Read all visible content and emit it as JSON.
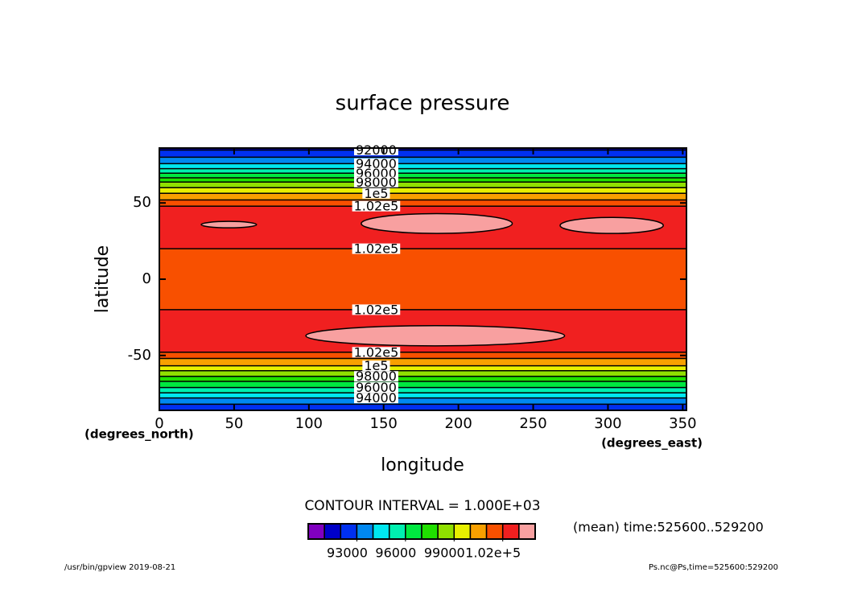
{
  "chart_data": {
    "type": "contour",
    "title": "surface pressure",
    "x_label": "longitude",
    "y_label": "latitude",
    "x_units": "(degrees_east)",
    "y_units": "(degrees_north)",
    "xlim": [
      0,
      352.5
    ],
    "ylim": [
      -86,
      86
    ],
    "xticks": [
      0,
      50,
      100,
      150,
      200,
      250,
      300,
      350
    ],
    "yticks": [
      -50,
      0,
      50
    ],
    "profile": {
      "lat": [
        86,
        84.7,
        80,
        75.8,
        72.5,
        69.5,
        66.5,
        63.7,
        60,
        56.3,
        52,
        47.9,
        35,
        20,
        0,
        -20,
        -35,
        -47.9,
        -52,
        -56.8,
        -60,
        -63.7,
        -67,
        -71,
        -74.5,
        -77.9,
        -82,
        -86
      ],
      "values": [
        91800,
        92000,
        93000,
        94000,
        95000,
        96000,
        97000,
        98000,
        99000,
        100000,
        101000,
        102000,
        102800,
        102000,
        101600,
        102000,
        102800,
        102000,
        101000,
        100000,
        99000,
        98000,
        97000,
        96000,
        95000,
        94000,
        93000,
        92200
      ]
    },
    "closed_contours": {
      "value": 103000,
      "regions": [
        {
          "lon": [
            28,
            65
          ],
          "lat": [
            33.7,
            37.9
          ]
        },
        {
          "lon": [
            135,
            236
          ],
          "lat": [
            30,
            43
          ]
        },
        {
          "lon": [
            268,
            337
          ],
          "lat": [
            30,
            40.5
          ]
        },
        {
          "lon": [
            98,
            271
          ],
          "lat": [
            -43.7,
            -30.5
          ]
        }
      ]
    },
    "contour_labels": [
      {
        "value": 92000,
        "label": "92000"
      },
      {
        "value": 94000,
        "label": "94000"
      },
      {
        "value": 96000,
        "label": "96000"
      },
      {
        "value": 98000,
        "label": "98000"
      },
      {
        "value": 100000,
        "label": "1e5"
      },
      {
        "value": 102000,
        "label": "1.02e5"
      }
    ],
    "label_lon": 145,
    "levels": [
      90000,
      91000,
      92000,
      93000,
      94000,
      95000,
      96000,
      97000,
      98000,
      99000,
      100000,
      101000,
      102000,
      103000,
      104000
    ],
    "colors": [
      "#8000c0",
      "#0000c8",
      "#0030f0",
      "#0088f0",
      "#00e8f0",
      "#00f0b0",
      "#00e840",
      "#20e000",
      "#90e000",
      "#e8f000",
      "#f8a000",
      "#f85000",
      "#f02020",
      "#f8a0a0"
    ],
    "colorbar_ticks": [
      93000,
      96000,
      99000,
      {
        "value": 102000,
        "label": "1.02e+5"
      }
    ],
    "contour_interval": "CONTOUR INTERVAL = 1.000E+03",
    "time_note": "(mean) time:525600..529200",
    "footer_left": "/usr/bin/gpview   2019-08-21",
    "footer_right": "Ps.nc@Ps,time=525600:529200"
  }
}
